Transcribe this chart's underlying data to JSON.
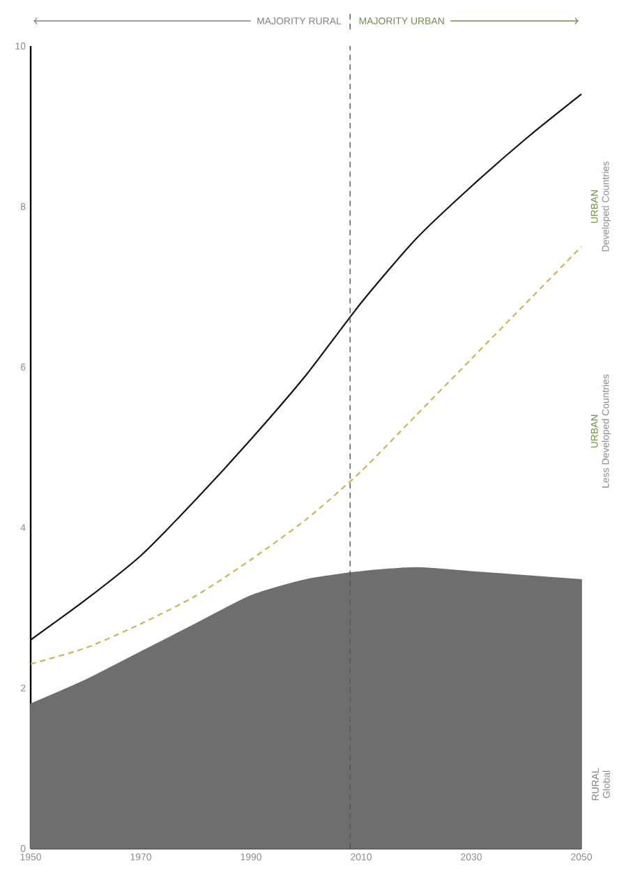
{
  "chart_data": {
    "type": "line",
    "x": [
      1950,
      1960,
      1970,
      1980,
      1990,
      2000,
      2010,
      2020,
      2030,
      2040,
      2050
    ],
    "series": [
      {
        "name": "Global",
        "type": "area",
        "color": "#6e6e6e",
        "values": [
          1.8,
          2.1,
          2.45,
          2.8,
          3.15,
          3.35,
          3.45,
          3.5,
          3.45,
          3.4,
          3.35
        ]
      },
      {
        "name": "Less Developed Countries",
        "line_style": "dashed",
        "color": "#c9b45c",
        "values": [
          2.3,
          2.5,
          2.8,
          3.15,
          3.6,
          4.1,
          4.7,
          5.4,
          6.1,
          6.8,
          7.5
        ]
      },
      {
        "name": "Developed Countries",
        "line_style": "solid",
        "color": "#111111",
        "values": [
          2.6,
          3.1,
          3.65,
          4.35,
          5.1,
          5.9,
          6.8,
          7.6,
          8.25,
          8.85,
          9.4
        ]
      }
    ],
    "annotations": [
      "MAJORITY RURAL",
      "MAJORITY URBAN",
      "RURAL",
      "URBAN",
      "URBAN"
    ],
    "ref_lines": [
      {
        "axis": "x",
        "value": 2008,
        "color": "#555555",
        "line_style": "dashed"
      }
    ],
    "xlim": [
      1950,
      2050
    ],
    "ylim": [
      0,
      10
    ],
    "xticks": [
      1950,
      1970,
      1990,
      2010,
      2030,
      2050
    ],
    "yticks": [
      0,
      2,
      4,
      6,
      8,
      10
    ],
    "grid": false,
    "legend": "right",
    "marker": "none"
  }
}
